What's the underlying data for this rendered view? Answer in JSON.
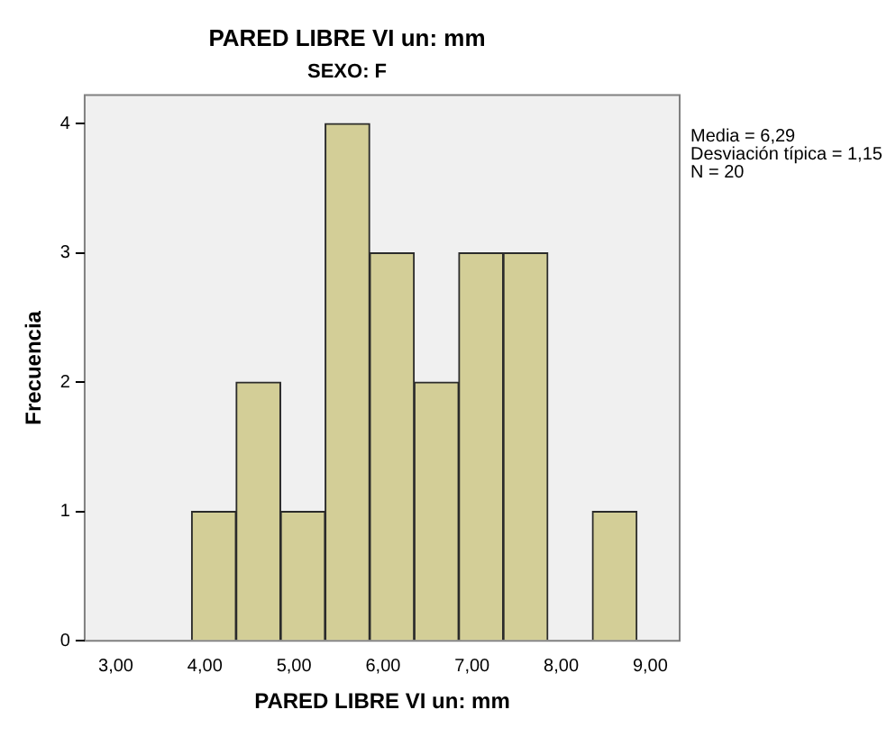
{
  "chart_data": {
    "type": "histogram",
    "title": "PARED LIBRE VI un: mm",
    "subtitle": "SEXO: F",
    "xlabel": "PARED LIBRE VI un: mm",
    "ylabel": "Frecuencia",
    "bins": [
      3.85,
      4.35,
      4.85,
      5.35,
      5.85,
      6.35,
      6.85,
      7.35,
      7.85,
      8.35,
      8.85
    ],
    "values": [
      1,
      2,
      1,
      4,
      3,
      2,
      3,
      3,
      0,
      1
    ],
    "color": "#d3ce97",
    "xlim": [
      2.65,
      9.33
    ],
    "xticks": [
      {
        "value": 3,
        "label": "3,00"
      },
      {
        "value": 4,
        "label": "4,00"
      },
      {
        "value": 5,
        "label": "5,00"
      },
      {
        "value": 6,
        "label": "6,00"
      },
      {
        "value": 7,
        "label": "7,00"
      },
      {
        "value": 8,
        "label": "8,00"
      },
      {
        "value": 9,
        "label": "9,00"
      }
    ],
    "ylim": [
      0,
      4.22
    ],
    "yticks": [
      0,
      1,
      2,
      3,
      4
    ],
    "annotations": [
      "Media = 6,29",
      "Desviación típica = 1,15",
      "N = 20"
    ],
    "grid": false,
    "legend": false
  }
}
